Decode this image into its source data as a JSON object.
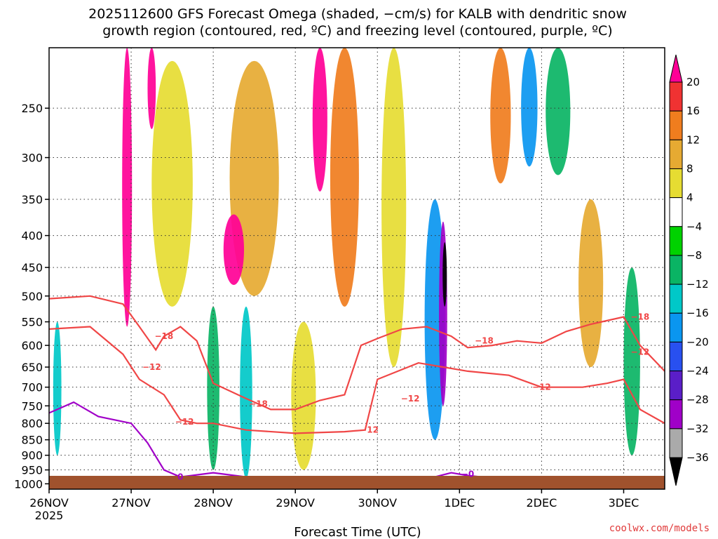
{
  "chart_data": {
    "type": "heatmap",
    "title_line1": "2025112600 GFS Forecast Omega (shaded, −cm/s) for KALB with dendritic snow",
    "title_line2": "growth region (contoured, red, ºC) and freezing level (contoured, purple, ºC)",
    "xlabel": "Forecast Time (UTC)",
    "credit": "coolwx.com/models",
    "x_ticks": [
      {
        "label": "26NOV",
        "sub": "2025",
        "day": 0
      },
      {
        "label": "27NOV",
        "sub": "",
        "day": 1
      },
      {
        "label": "28NOV",
        "sub": "",
        "day": 2
      },
      {
        "label": "29NOV",
        "sub": "",
        "day": 3
      },
      {
        "label": "30NOV",
        "sub": "",
        "day": 4
      },
      {
        "label": "1DEC",
        "sub": "",
        "day": 5
      },
      {
        "label": "2DEC",
        "sub": "",
        "day": 6
      },
      {
        "label": "3DEC",
        "sub": "",
        "day": 7
      }
    ],
    "xlim": [
      0,
      7.5
    ],
    "y_ticks": [
      250,
      300,
      350,
      400,
      450,
      500,
      550,
      600,
      650,
      700,
      750,
      800,
      850,
      900,
      950,
      1000
    ],
    "ylim": [
      200,
      1020
    ],
    "y_scale": "log-pressure",
    "grid": true,
    "colorbar": {
      "labels": [
        "20",
        "16",
        "12",
        "8",
        "4",
        "−4",
        "−8",
        "−12",
        "−16",
        "−20",
        "−24",
        "−28",
        "−32",
        "−36"
      ],
      "colors": [
        "#ff0096",
        "#f03232",
        "#f07d1e",
        "#e6aa32",
        "#e6dc32",
        "#ffffff",
        "#00d200",
        "#0ab464",
        "#00c8c8",
        "#0a96f0",
        "#2850f0",
        "#5a1ec8",
        "#a000c8",
        "#aaaaaa",
        "#000000"
      ]
    },
    "omega_features": [
      {
        "t": 0.95,
        "p_top": 200,
        "p_bot": 560,
        "w": 0.12,
        "value": 20
      },
      {
        "t": 1.25,
        "p_top": 200,
        "p_bot": 270,
        "w": 0.1,
        "value": 20
      },
      {
        "t": 2.25,
        "p_top": 370,
        "p_bot": 480,
        "w": 0.25,
        "value": 20
      },
      {
        "t": 3.3,
        "p_top": 200,
        "p_bot": 340,
        "w": 0.18,
        "value": 20
      },
      {
        "t": 3.6,
        "p_top": 200,
        "p_bot": 520,
        "w": 0.35,
        "value": 12
      },
      {
        "t": 2.5,
        "p_top": 210,
        "p_bot": 500,
        "w": 0.6,
        "value": 8
      },
      {
        "t": 1.5,
        "p_top": 210,
        "p_bot": 520,
        "w": 0.5,
        "value": 6
      },
      {
        "t": 2.0,
        "p_top": 520,
        "p_bot": 950,
        "w": 0.15,
        "value": -10
      },
      {
        "t": 2.4,
        "p_top": 520,
        "p_bot": 980,
        "w": 0.15,
        "value": -12
      },
      {
        "t": 0.1,
        "p_top": 550,
        "p_bot": 900,
        "w": 0.1,
        "value": -12
      },
      {
        "t": 4.7,
        "p_top": 350,
        "p_bot": 850,
        "w": 0.25,
        "value": -16
      },
      {
        "t": 4.8,
        "p_top": 380,
        "p_bot": 750,
        "w": 0.1,
        "value": -28
      },
      {
        "t": 4.82,
        "p_top": 410,
        "p_bot": 520,
        "w": 0.04,
        "value": -36
      },
      {
        "t": 5.85,
        "p_top": 200,
        "p_bot": 310,
        "w": 0.2,
        "value": -16
      },
      {
        "t": 6.2,
        "p_top": 200,
        "p_bot": 320,
        "w": 0.3,
        "value": -8
      },
      {
        "t": 7.1,
        "p_top": 450,
        "p_bot": 900,
        "w": 0.2,
        "value": -10
      },
      {
        "t": 5.5,
        "p_top": 200,
        "p_bot": 330,
        "w": 0.25,
        "value": 12
      },
      {
        "t": 6.6,
        "p_top": 350,
        "p_bot": 650,
        "w": 0.3,
        "value": 8
      },
      {
        "t": 3.1,
        "p_top": 550,
        "p_bot": 950,
        "w": 0.3,
        "value": 6
      },
      {
        "t": 4.2,
        "p_top": 200,
        "p_bot": 650,
        "w": 0.3,
        "value": 6
      }
    ],
    "contours": [
      {
        "name": "dgz-upper",
        "level": "-18",
        "color": "#f04646",
        "points": [
          [
            0,
            505
          ],
          [
            0.5,
            500
          ],
          [
            0.9,
            515
          ],
          [
            1.1,
            560
          ],
          [
            1.3,
            610
          ],
          [
            1.4,
            580
          ],
          [
            1.6,
            560
          ],
          [
            1.8,
            590
          ],
          [
            2.0,
            690
          ],
          [
            2.4,
            730
          ],
          [
            2.7,
            760
          ],
          [
            3.0,
            760
          ],
          [
            3.3,
            735
          ],
          [
            3.6,
            720
          ],
          [
            3.8,
            600
          ],
          [
            4.0,
            585
          ],
          [
            4.3,
            565
          ],
          [
            4.6,
            560
          ],
          [
            4.9,
            580
          ],
          [
            5.1,
            605
          ],
          [
            5.4,
            600
          ],
          [
            5.7,
            590
          ],
          [
            6.0,
            595
          ],
          [
            6.3,
            570
          ],
          [
            6.6,
            555
          ],
          [
            7.0,
            540
          ],
          [
            7.2,
            600
          ],
          [
            7.5,
            660
          ]
        ]
      },
      {
        "name": "dgz-lower",
        "level": "-12",
        "color": "#f04646",
        "points": [
          [
            0,
            565
          ],
          [
            0.5,
            560
          ],
          [
            0.9,
            620
          ],
          [
            1.1,
            680
          ],
          [
            1.4,
            720
          ],
          [
            1.6,
            790
          ],
          [
            1.8,
            800
          ],
          [
            2.0,
            800
          ],
          [
            2.4,
            820
          ],
          [
            3.0,
            830
          ],
          [
            3.6,
            825
          ],
          [
            3.85,
            820
          ],
          [
            4.0,
            680
          ],
          [
            4.5,
            640
          ],
          [
            4.8,
            650
          ],
          [
            5.1,
            660
          ],
          [
            5.6,
            670
          ],
          [
            6.0,
            700
          ],
          [
            6.5,
            700
          ],
          [
            6.8,
            690
          ],
          [
            7.0,
            680
          ],
          [
            7.2,
            760
          ],
          [
            7.5,
            800
          ]
        ]
      },
      {
        "name": "freezing-level",
        "level": "0",
        "color": "#a000c8",
        "points": [
          [
            0,
            770
          ],
          [
            0.3,
            740
          ],
          [
            0.6,
            780
          ],
          [
            1.0,
            800
          ],
          [
            1.2,
            860
          ],
          [
            1.4,
            950
          ],
          [
            1.6,
            975
          ],
          [
            2.0,
            960
          ],
          [
            2.4,
            975
          ],
          [
            2.8,
            1000
          ],
          [
            3.2,
            1010
          ],
          [
            3.6,
            1020
          ],
          [
            4.4,
            1010
          ],
          [
            4.7,
            975
          ],
          [
            4.9,
            960
          ],
          [
            5.1,
            970
          ],
          [
            5.6,
            985
          ],
          [
            6.0,
            980
          ],
          [
            6.3,
            1000
          ],
          [
            6.6,
            1010
          ]
        ]
      }
    ],
    "contour_labels": [
      {
        "text": "−18",
        "t": 1.4,
        "p": 580,
        "color": "#f04646"
      },
      {
        "text": "−12",
        "t": 1.25,
        "p": 650,
        "color": "#f04646"
      },
      {
        "text": "−12",
        "t": 1.65,
        "p": 795,
        "color": "#f04646"
      },
      {
        "text": "−18",
        "t": 2.55,
        "p": 745,
        "color": "#f04646"
      },
      {
        "text": "−12",
        "t": 3.9,
        "p": 820,
        "color": "#f04646"
      },
      {
        "text": "−12",
        "t": 4.4,
        "p": 730,
        "color": "#f04646"
      },
      {
        "text": "−18",
        "t": 5.3,
        "p": 590,
        "color": "#f04646"
      },
      {
        "text": "−12",
        "t": 6.0,
        "p": 700,
        "color": "#f04646"
      },
      {
        "text": "−18",
        "t": 7.2,
        "p": 540,
        "color": "#f04646"
      },
      {
        "text": "−12",
        "t": 7.2,
        "p": 615,
        "color": "#f04646"
      },
      {
        "text": "0",
        "t": 1.6,
        "p": 975,
        "color": "#a000c8"
      },
      {
        "text": "−0",
        "t": 5.1,
        "p": 965,
        "color": "#a000c8"
      }
    ],
    "terrain_color": "#a0522d"
  }
}
